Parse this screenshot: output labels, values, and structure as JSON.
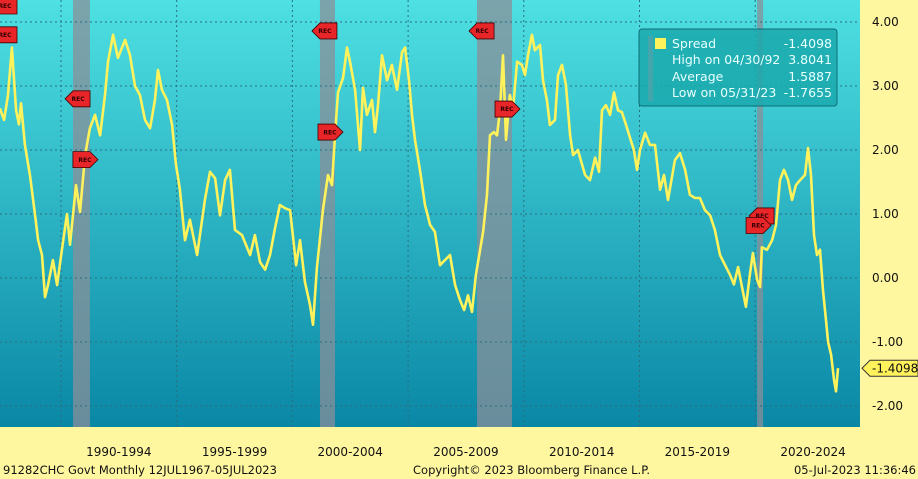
{
  "chart_data": {
    "type": "line",
    "title": "",
    "xlabel": "",
    "ylabel": "",
    "ylim": [
      -2.35,
      4.35
    ],
    "xlim": [
      1987.36,
      2024.4
    ],
    "y_ticks": [
      "4.00",
      "3.00",
      "2.00",
      "1.00",
      "0.00",
      "-1.00",
      "-2.00"
    ],
    "y_tick_values": [
      4,
      3,
      2,
      1,
      0,
      -1,
      -2
    ],
    "x_tick_labels": [
      "1990-1994",
      "1995-1999",
      "2000-2004",
      "2005-2009",
      "2010-2014",
      "2015-2019",
      "2020-2024"
    ],
    "x_gridlines": [
      1990,
      1995,
      2000,
      2005,
      2010,
      2015,
      2020
    ],
    "grid": true,
    "legend_placement": "top-right",
    "colors": {
      "series": "#fff25a",
      "background_top": "#4ee0e2",
      "background_bottom": "#0a87a5",
      "axis_panel": "#fff7a0",
      "recession": "#8a8f98",
      "rec_marker": "#e8262a"
    },
    "series": [
      {
        "name": "Spread",
        "points": [
          [
            1987.36,
            2.65
          ],
          [
            1987.54,
            2.47
          ],
          [
            1987.71,
            2.86
          ],
          [
            1987.88,
            3.6
          ],
          [
            1988.06,
            2.62
          ],
          [
            1988.18,
            2.4
          ],
          [
            1988.27,
            2.73
          ],
          [
            1988.44,
            2.08
          ],
          [
            1988.66,
            1.6
          ],
          [
            1988.88,
            0.98
          ],
          [
            1989.01,
            0.59
          ],
          [
            1989.18,
            0.36
          ],
          [
            1989.31,
            -0.3
          ],
          [
            1989.44,
            -0.11
          ],
          [
            1989.65,
            0.28
          ],
          [
            1989.83,
            -0.11
          ],
          [
            1990.04,
            0.44
          ],
          [
            1990.26,
            1.0
          ],
          [
            1990.39,
            0.52
          ],
          [
            1990.65,
            1.45
          ],
          [
            1990.82,
            1.03
          ],
          [
            1991.04,
            1.92
          ],
          [
            1991.25,
            2.34
          ],
          [
            1991.47,
            2.55
          ],
          [
            1991.69,
            2.23
          ],
          [
            1991.9,
            2.86
          ],
          [
            1992.03,
            3.38
          ],
          [
            1992.25,
            3.8
          ],
          [
            1992.46,
            3.44
          ],
          [
            1992.77,
            3.72
          ],
          [
            1992.98,
            3.48
          ],
          [
            1993.2,
            3.0
          ],
          [
            1993.41,
            2.86
          ],
          [
            1993.63,
            2.47
          ],
          [
            1993.85,
            2.34
          ],
          [
            1994.06,
            2.78
          ],
          [
            1994.19,
            3.25
          ],
          [
            1994.36,
            2.94
          ],
          [
            1994.58,
            2.78
          ],
          [
            1994.8,
            2.39
          ],
          [
            1994.97,
            1.77
          ],
          [
            1995.14,
            1.38
          ],
          [
            1995.36,
            0.59
          ],
          [
            1995.57,
            0.91
          ],
          [
            1995.88,
            0.36
          ],
          [
            1996.22,
            1.22
          ],
          [
            1996.44,
            1.66
          ],
          [
            1996.66,
            1.56
          ],
          [
            1996.87,
            0.98
          ],
          [
            1997.09,
            1.53
          ],
          [
            1997.3,
            1.69
          ],
          [
            1997.52,
            0.75
          ],
          [
            1997.82,
            0.67
          ],
          [
            1998.17,
            0.36
          ],
          [
            1998.38,
            0.67
          ],
          [
            1998.6,
            0.25
          ],
          [
            1998.82,
            0.13
          ],
          [
            1999.03,
            0.36
          ],
          [
            1999.25,
            0.78
          ],
          [
            1999.46,
            1.14
          ],
          [
            1999.68,
            1.09
          ],
          [
            1999.9,
            1.06
          ],
          [
            2000.16,
            0.2
          ],
          [
            2000.33,
            0.59
          ],
          [
            2000.54,
            -0.06
          ],
          [
            2000.76,
            -0.42
          ],
          [
            2000.89,
            -0.73
          ],
          [
            2001.06,
            0.16
          ],
          [
            2001.32,
            1.06
          ],
          [
            2001.54,
            1.61
          ],
          [
            2001.71,
            1.45
          ],
          [
            2001.84,
            2.23
          ],
          [
            2001.97,
            2.9
          ],
          [
            2002.19,
            3.13
          ],
          [
            2002.36,
            3.6
          ],
          [
            2002.49,
            3.38
          ],
          [
            2002.71,
            2.94
          ],
          [
            2002.92,
            2.0
          ],
          [
            2003.05,
            2.97
          ],
          [
            2003.22,
            2.55
          ],
          [
            2003.44,
            2.78
          ],
          [
            2003.57,
            2.28
          ],
          [
            2003.7,
            2.7
          ],
          [
            2003.87,
            3.48
          ],
          [
            2004.09,
            3.09
          ],
          [
            2004.3,
            3.33
          ],
          [
            2004.52,
            2.94
          ],
          [
            2004.74,
            3.53
          ],
          [
            2004.87,
            3.6
          ],
          [
            2005.04,
            3.09
          ],
          [
            2005.17,
            2.55
          ],
          [
            2005.3,
            2.16
          ],
          [
            2005.51,
            1.69
          ],
          [
            2005.73,
            1.14
          ],
          [
            2005.95,
            0.83
          ],
          [
            2006.16,
            0.72
          ],
          [
            2006.38,
            0.2
          ],
          [
            2006.59,
            0.28
          ],
          [
            2006.81,
            0.36
          ],
          [
            2007.03,
            -0.11
          ],
          [
            2007.24,
            -0.34
          ],
          [
            2007.42,
            -0.5
          ],
          [
            2007.59,
            -0.27
          ],
          [
            2007.76,
            -0.53
          ],
          [
            2007.93,
            0.05
          ],
          [
            2008.11,
            0.44
          ],
          [
            2008.24,
            0.72
          ],
          [
            2008.41,
            1.3
          ],
          [
            2008.54,
            2.23
          ],
          [
            2008.71,
            2.28
          ],
          [
            2008.84,
            2.23
          ],
          [
            2008.97,
            2.62
          ],
          [
            2009.1,
            3.48
          ],
          [
            2009.23,
            2.16
          ],
          [
            2009.4,
            2.86
          ],
          [
            2009.53,
            2.62
          ],
          [
            2009.71,
            3.38
          ],
          [
            2009.92,
            3.33
          ],
          [
            2010.05,
            3.17
          ],
          [
            2010.18,
            3.48
          ],
          [
            2010.35,
            3.8
          ],
          [
            2010.48,
            3.56
          ],
          [
            2010.7,
            3.64
          ],
          [
            2010.83,
            3.09
          ],
          [
            2011.0,
            2.78
          ],
          [
            2011.13,
            2.39
          ],
          [
            2011.35,
            2.47
          ],
          [
            2011.48,
            3.17
          ],
          [
            2011.65,
            3.33
          ],
          [
            2011.82,
            3.02
          ],
          [
            2012.0,
            2.23
          ],
          [
            2012.13,
            1.92
          ],
          [
            2012.34,
            2.0
          ],
          [
            2012.52,
            1.77
          ],
          [
            2012.65,
            1.61
          ],
          [
            2012.86,
            1.53
          ],
          [
            2013.08,
            1.88
          ],
          [
            2013.25,
            1.66
          ],
          [
            2013.38,
            2.62
          ],
          [
            2013.55,
            2.7
          ],
          [
            2013.73,
            2.55
          ],
          [
            2013.9,
            2.9
          ],
          [
            2014.07,
            2.62
          ],
          [
            2014.24,
            2.59
          ],
          [
            2014.42,
            2.39
          ],
          [
            2014.59,
            2.19
          ],
          [
            2014.76,
            2.0
          ],
          [
            2014.89,
            1.69
          ],
          [
            2015.02,
            2.0
          ],
          [
            2015.24,
            2.27
          ],
          [
            2015.45,
            2.08
          ],
          [
            2015.67,
            2.08
          ],
          [
            2015.89,
            1.38
          ],
          [
            2016.06,
            1.61
          ],
          [
            2016.23,
            1.22
          ],
          [
            2016.53,
            1.84
          ],
          [
            2016.75,
            1.95
          ],
          [
            2016.97,
            1.69
          ],
          [
            2017.18,
            1.3
          ],
          [
            2017.4,
            1.25
          ],
          [
            2017.61,
            1.25
          ],
          [
            2017.83,
            1.06
          ],
          [
            2018.05,
            0.98
          ],
          [
            2018.26,
            0.75
          ],
          [
            2018.48,
            0.36
          ],
          [
            2018.7,
            0.2
          ],
          [
            2018.91,
            0.05
          ],
          [
            2019.08,
            -0.1
          ],
          [
            2019.26,
            0.17
          ],
          [
            2019.43,
            -0.14
          ],
          [
            2019.6,
            -0.45
          ],
          [
            2019.78,
            0.08
          ],
          [
            2019.9,
            0.39
          ],
          [
            2020.08,
            -0.03
          ],
          [
            2020.21,
            -0.14
          ],
          [
            2020.29,
            0.48
          ],
          [
            2020.51,
            0.44
          ],
          [
            2020.73,
            0.59
          ],
          [
            2020.9,
            0.83
          ],
          [
            2021.07,
            1.53
          ],
          [
            2021.24,
            1.69
          ],
          [
            2021.42,
            1.53
          ],
          [
            2021.59,
            1.22
          ],
          [
            2021.76,
            1.45
          ],
          [
            2021.94,
            1.53
          ],
          [
            2022.15,
            1.61
          ],
          [
            2022.28,
            2.03
          ],
          [
            2022.41,
            1.61
          ],
          [
            2022.54,
            0.67
          ],
          [
            2022.67,
            0.36
          ],
          [
            2022.8,
            0.44
          ],
          [
            2022.93,
            -0.19
          ],
          [
            2023.06,
            -0.66
          ],
          [
            2023.15,
            -1.0
          ],
          [
            2023.28,
            -1.2
          ],
          [
            2023.41,
            -1.6
          ],
          [
            2023.49,
            -1.77
          ],
          [
            2023.58,
            -1.41
          ]
        ]
      }
    ],
    "recessions": [
      [
        1990.52,
        1991.25
      ],
      [
        2001.19,
        2001.84
      ],
      [
        2007.98,
        2009.49
      ],
      [
        2020.08,
        2020.34
      ]
    ],
    "rec_markers": [
      {
        "label": "REC",
        "year": 1987.36,
        "value": 4.25,
        "dir": "left"
      },
      {
        "label": "REC",
        "year": 1987.36,
        "value": 3.8,
        "dir": "left"
      },
      {
        "label": "REC",
        "year": 1990.52,
        "value": 2.8,
        "dir": "left"
      },
      {
        "label": "REC",
        "year": 1991.25,
        "value": 1.85,
        "dir": "right"
      },
      {
        "label": "REC",
        "year": 2001.19,
        "value": 3.86,
        "dir": "left"
      },
      {
        "label": "REC",
        "year": 2001.84,
        "value": 2.28,
        "dir": "right"
      },
      {
        "label": "REC",
        "year": 2007.98,
        "value": 3.86,
        "dir": "left"
      },
      {
        "label": "REC",
        "year": 2009.49,
        "value": 2.64,
        "dir": "right"
      },
      {
        "label": "REC",
        "year": 2020.08,
        "value": 0.97,
        "dir": "left"
      },
      {
        "label": "REC",
        "year": 2020.34,
        "value": 0.82,
        "dir": "right"
      }
    ],
    "legend": {
      "series_name": "Spread",
      "series_value": "-1.4098",
      "high_label": "High on 04/30/92",
      "high_value": "3.8041",
      "avg_label": "Average",
      "avg_value": "1.5887",
      "low_label": "Low on 05/31/23",
      "low_value": "-1.7655"
    },
    "last_value": -1.4098,
    "last_value_label": "-1.4098"
  },
  "footer": {
    "security": "91282CHC Govt  Monthly 12JUL1967-05JUL2023",
    "copyright": "Copyright© 2023 Bloomberg Finance L.P.",
    "timestamp": "05-Jul-2023 11:36:46"
  }
}
